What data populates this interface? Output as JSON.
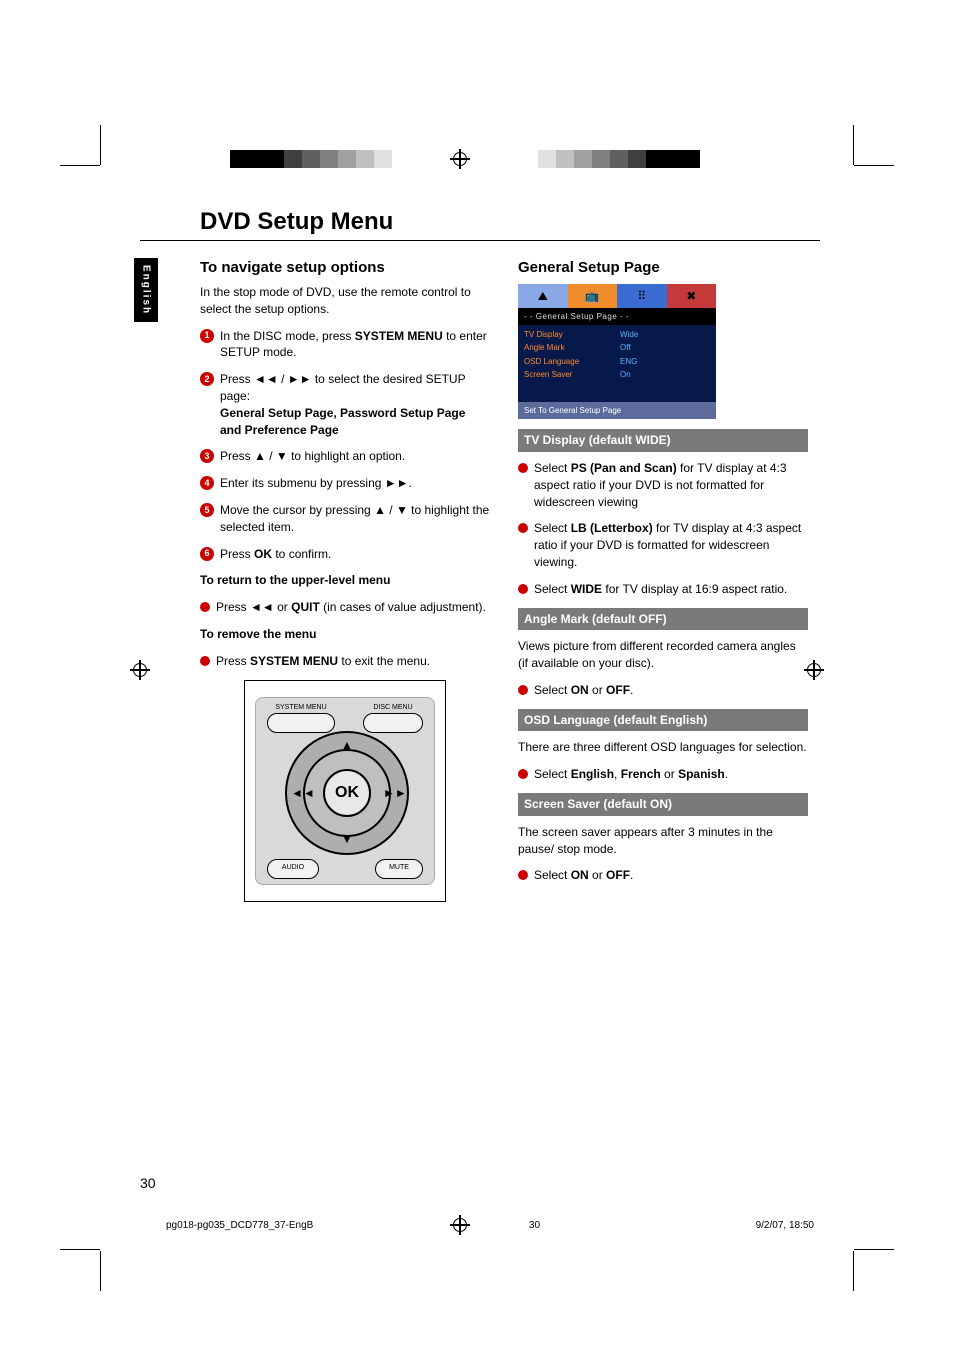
{
  "title": "DVD Setup Menu",
  "lang_tab": "English",
  "page_number": "30",
  "footer": {
    "file": "pg018-pg035_DCD778_37-EngB",
    "page": "30",
    "date": "9/2/07, 18:50"
  },
  "left": {
    "h2": "To navigate setup options",
    "intro": " In the stop mode of DVD, use the remote control to select the setup options.",
    "steps": [
      {
        "n": "1",
        "pre": "In the DISC mode, press ",
        "bold": "SYSTEM MENU",
        "post": " to enter SETUP mode."
      },
      {
        "n": "2",
        "pre": "Press ◄◄ /  ►► to select the desired  SETUP page:",
        "extra_bold": "General Setup Page, Password Setup Page and Preference Page"
      },
      {
        "n": "3",
        "text": "Press  ▲  /  ▼ to highlight an option."
      },
      {
        "n": "4",
        "text": "Enter its submenu by pressing  ►►."
      },
      {
        "n": "5",
        "text": "Move the cursor by pressing   ▲  /  ▼  to highlight the selected item."
      },
      {
        "n": "6",
        "pre": "Press ",
        "bold": "OK",
        "post": " to confirm."
      }
    ],
    "return_head": "To return to the upper-level menu",
    "return_pre": "Press ◄◄  or ",
    "return_bold": "QUIT",
    "return_post": " (in cases of value adjustment).",
    "remove_head": "To remove the menu",
    "remove_pre": "Press ",
    "remove_bold": "SYSTEM MENU",
    "remove_post": " to exit the menu.",
    "remote": {
      "system_menu": "SYSTEM MENU",
      "disc_menu": "DISC MENU",
      "ok": "OK",
      "audio": "AUDIO",
      "mute": "MUTE"
    }
  },
  "right": {
    "h2": "General Setup Page",
    "setup": {
      "tab_colors": [
        "#8aa8e6",
        "#f08c2a",
        "#3a6bd1",
        "#c43a3a"
      ],
      "tab_icons": [
        "⛰",
        "📺",
        "⠿",
        "✖"
      ],
      "panel_header": "- -   General Setup Page   - -",
      "rows": [
        {
          "k": "TV Display",
          "v": "Wide"
        },
        {
          "k": "Angle Mark",
          "v": "Off"
        },
        {
          "k": "OSD Language",
          "v": "ENG"
        },
        {
          "k": "Screen Saver",
          "v": "On"
        }
      ],
      "footer": "Set To General Setup Page"
    },
    "sections": [
      {
        "band": "TV Display (default WIDE)",
        "bullets": [
          {
            "pre": "Select ",
            "bold": "PS (Pan and Scan)",
            "post": " for TV display at 4:3 aspect ratio if your DVD is not formatted for widescreen viewing"
          },
          {
            "pre": "Select ",
            "bold": "LB (Letterbox)",
            "post": " for TV display at 4:3 aspect ratio if your DVD is formatted for widescreen viewing."
          },
          {
            "pre": "Select ",
            "bold": "WIDE",
            "post": " for TV display at 16:9 aspect ratio."
          }
        ]
      },
      {
        "band": "Angle  Mark  (default OFF)",
        "lead": "Views picture from different recorded camera angles (if available on your disc).",
        "bullets": [
          {
            "pre": "Select ",
            "bold": "ON",
            "mid": " or ",
            "bold2": "OFF",
            "post": "."
          }
        ]
      },
      {
        "band": "OSD Language (default English)",
        "lead": "There are three different OSD languages for selection.",
        "bullets": [
          {
            "pre": "Select ",
            "bold": "English",
            "mid": ", ",
            "bold2": "French",
            "mid2": " or ",
            "bold3": "Spanish",
            "post": "."
          }
        ]
      },
      {
        "band": "Screen Saver (default ON)",
        "lead": "The screen saver appears after 3 minutes in the pause/ stop mode.",
        "bullets": [
          {
            "pre": "Select ",
            "bold": "ON",
            "mid": " or ",
            "bold2": "OFF",
            "post": "."
          }
        ]
      }
    ]
  },
  "reg_colors_left": [
    "#000",
    "#000",
    "#000",
    "#404040",
    "#606060",
    "#808080",
    "#a0a0a0",
    "#c0c0c0",
    "#e0e0e0",
    "#fff"
  ],
  "reg_colors_right": [
    "#fff",
    "#e0e0e0",
    "#c0c0c0",
    "#a0a0a0",
    "#808080",
    "#606060",
    "#404040",
    "#000",
    "#000",
    "#000"
  ]
}
